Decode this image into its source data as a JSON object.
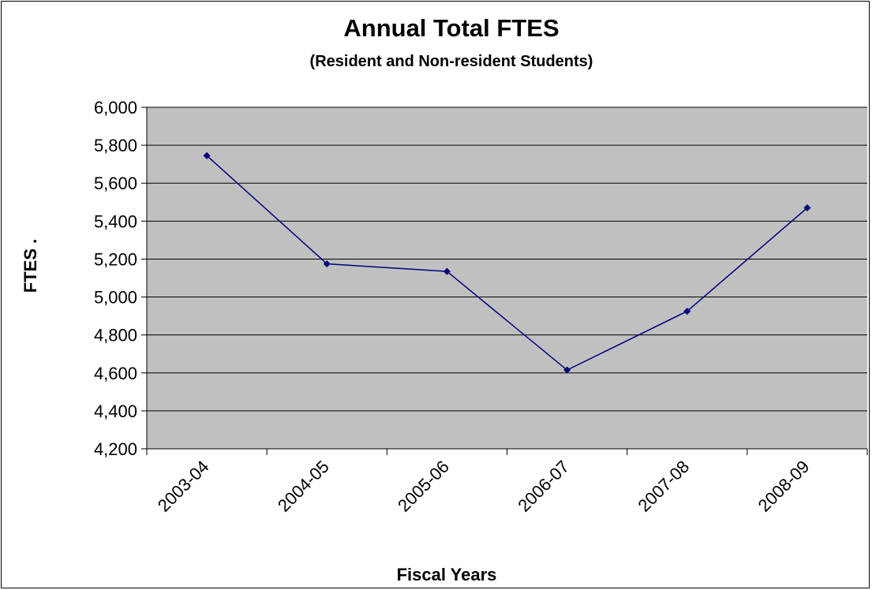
{
  "chart_data": {
    "type": "line",
    "title": "Annual Total FTES",
    "subtitle": "(Resident and Non-resident Students)",
    "xlabel": "Fiscal Years",
    "ylabel": "FTES    .",
    "categories": [
      "2003-04",
      "2004-05",
      "2005-06",
      "2006-07",
      "2007-08",
      "2008-09"
    ],
    "series": [
      {
        "values": [
          5745,
          5175,
          5135,
          4615,
          4925,
          5470
        ],
        "color": "#000080"
      }
    ],
    "ylim": [
      4200,
      6000
    ],
    "yticks": [
      4200,
      4400,
      4600,
      4800,
      5000,
      5200,
      5400,
      5600,
      5800,
      6000
    ],
    "ytick_labels": [
      "4,200",
      "4,400",
      "4,600",
      "4,800",
      "5,000",
      "5,200",
      "5,400",
      "5,600",
      "5,800",
      "6,000"
    ],
    "grid": true,
    "plot_background": "#c0c0c0",
    "legend": "none"
  }
}
